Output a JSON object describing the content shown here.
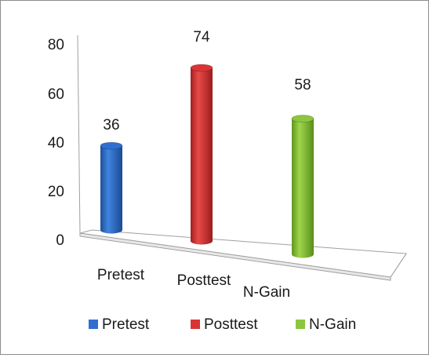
{
  "chart_data": {
    "type": "bar",
    "title": "",
    "xlabel": "",
    "ylabel": "",
    "ylim": [
      0,
      80
    ],
    "yticks": [
      0,
      20,
      40,
      60,
      80
    ],
    "categories": [
      "Pretest",
      "Posttest",
      "N-Gain"
    ],
    "values": [
      36,
      74,
      58
    ],
    "data_labels": [
      "36",
      "74",
      "58"
    ],
    "colors": [
      "#2f6fd0",
      "#d93535",
      "#8cc63f"
    ],
    "legend": {
      "position": "bottom",
      "entries": [
        {
          "label": "Pretest",
          "color": "#2f6fd0"
        },
        {
          "label": "Posttest",
          "color": "#d93535"
        },
        {
          "label": "N-Gain",
          "color": "#8cc63f"
        }
      ]
    },
    "style": "3d-cylinder",
    "grid": false
  }
}
